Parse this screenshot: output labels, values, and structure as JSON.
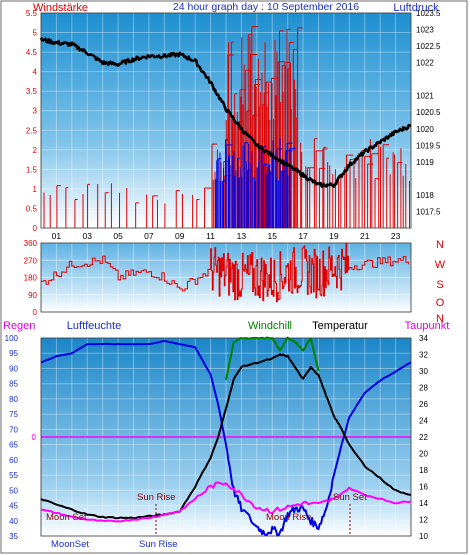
{
  "header": {
    "left_label": "Windstärke",
    "title": "24 hour graph day : 10 September 2016",
    "right_label": "Luftdruck"
  },
  "colors": {
    "red": "#e00000",
    "blue": "#0000e0",
    "darkblue": "#0b2a9e",
    "black": "#000000",
    "magenta": "#ff00ff",
    "green": "#008000",
    "maroon": "#8b0000",
    "label_blue": "#1a2fcc"
  },
  "chart_data": [
    {
      "type": "line",
      "name": "wind-pressure",
      "title": "24 hour graph day : 10 September 2016",
      "ylabel_left": "Windstärke",
      "ylabel_right": "Luftdruck",
      "ylim_left": [
        0,
        5.5
      ],
      "ylim_right": [
        1017,
        1023.5
      ],
      "left_ticks": [
        "0",
        "0.5",
        "1",
        "1.5",
        "2",
        "2.5",
        "3",
        "3.5",
        "4",
        "4.5",
        "5",
        "5.5"
      ],
      "right_ticks": [
        "1017.5",
        "1018",
        "1019",
        "1019.5",
        "1020",
        "1020.5",
        "1021",
        "1022",
        "1022.5",
        "1023",
        "1023.5"
      ],
      "x_ticks": [
        "01",
        "03",
        "05",
        "07",
        "09",
        "11",
        "13",
        "15",
        "17",
        "19",
        "21",
        "23"
      ],
      "xlim": [
        0,
        24
      ],
      "pressure": {
        "x": [
          0,
          1,
          2,
          3,
          4,
          5,
          6,
          7,
          8,
          9,
          10,
          11,
          12,
          13,
          14,
          15,
          16,
          17,
          18,
          19,
          20,
          21,
          22,
          23,
          24
        ],
        "y": [
          1022.7,
          1022.6,
          1022.55,
          1022.3,
          1022.0,
          1021.95,
          1022.1,
          1022.2,
          1022.2,
          1022.25,
          1022.05,
          1021.4,
          1020.6,
          1020.0,
          1019.5,
          1019.2,
          1018.9,
          1018.6,
          1018.3,
          1018.3,
          1018.9,
          1019.3,
          1019.6,
          1019.9,
          1020.1
        ]
      },
      "wind": [
        {
          "range": [
            0,
            11
          ],
          "level": 1,
          "bar_count": 22,
          "color": "red"
        },
        {
          "range": [
            11,
            12
          ],
          "level": 2,
          "bar_count": 8,
          "color": "red"
        },
        {
          "range": [
            12,
            16.7
          ],
          "level": 4.5,
          "bar_count": 60,
          "color": "red"
        },
        {
          "range": [
            11.3,
            16.2
          ],
          "level": 2,
          "bar_count": 55,
          "color": "blue"
        },
        {
          "range": [
            16.7,
            24
          ],
          "level": 2,
          "bar_count": 40,
          "color": "red"
        }
      ]
    },
    {
      "type": "line",
      "name": "wind-direction",
      "ylim": [
        0,
        360
      ],
      "left_ticks": [
        "0",
        "90",
        "180",
        "270",
        "360"
      ],
      "right_ticks": [
        "N",
        "W",
        "S",
        "O",
        "N"
      ],
      "x": [
        0,
        1,
        2,
        3,
        4,
        5,
        6,
        7,
        8,
        9,
        10,
        11,
        12,
        13,
        14,
        15,
        16,
        17,
        18,
        19,
        20,
        21,
        22,
        23,
        24
      ],
      "y": [
        150,
        200,
        250,
        260,
        270,
        180,
        200,
        210,
        180,
        120,
        170,
        220,
        200,
        180,
        190,
        170,
        210,
        220,
        200,
        240,
        240,
        250,
        260,
        270,
        270
      ]
    },
    {
      "type": "line",
      "name": "humidity-temperature",
      "left_label": "Regen",
      "left_label_2": "Luftfeuchte",
      "right_labels": [
        "Windchill",
        "Temperatur",
        "Taupunkt"
      ],
      "ylim_left": [
        35,
        100
      ],
      "ylim_right": [
        10,
        34
      ],
      "left_ticks": [
        "35",
        "40",
        "45",
        "50",
        "55",
        "60",
        "65",
        "70",
        "75",
        "80",
        "85",
        "90",
        "95",
        "100"
      ],
      "right_ticks": [
        "10",
        "12",
        "14",
        "16",
        "18",
        "20",
        "22",
        "24",
        "26",
        "28",
        "30",
        "32",
        "34"
      ],
      "zero_label": "0",
      "annotations": {
        "moon_set": "Moon Set",
        "moon_rise": "Moon Rise",
        "sun_rise": "Sun Rise",
        "sun_set": "Sun Set",
        "bottom_moon": "MoonSet",
        "bottom_sun": "Sun Rise"
      },
      "series": [
        {
          "name": "Luftfeuchte",
          "color": "blue",
          "axis": "left",
          "x": [
            0,
            1,
            2,
            3,
            4,
            5,
            6,
            7,
            8,
            9,
            10,
            11,
            11.5,
            12,
            12.5,
            13,
            14,
            14.5,
            15,
            15.5,
            16,
            16.5,
            17,
            17.5,
            18,
            18.5,
            19,
            19.5,
            20,
            21,
            22,
            23,
            24
          ],
          "y": [
            92,
            94,
            95,
            98,
            98,
            98,
            98,
            98,
            99,
            98,
            97,
            88,
            78,
            65,
            50,
            44,
            38,
            36,
            37,
            36,
            42,
            44,
            44,
            40,
            38,
            44,
            55,
            65,
            74,
            82,
            86,
            89,
            92
          ]
        },
        {
          "name": "Temperatur",
          "color": "black",
          "axis": "right",
          "x": [
            0,
            1,
            2,
            3,
            4,
            5,
            6,
            7,
            8,
            9,
            10,
            11,
            11.5,
            12,
            12.5,
            13,
            14,
            15,
            15.5,
            16,
            17,
            17.5,
            18,
            18.5,
            19,
            19.5,
            20,
            21,
            22,
            23,
            24
          ],
          "y": [
            14.5,
            13.8,
            13.2,
            12.6,
            12.3,
            12.2,
            12.2,
            12.4,
            12.6,
            13.0,
            16.0,
            19.5,
            22.0,
            25.5,
            29.0,
            30.5,
            31.0,
            31.5,
            32.0,
            31.8,
            29.0,
            30.5,
            29.5,
            27.0,
            24.5,
            23.0,
            21.0,
            18.5,
            17.0,
            15.5,
            15.0
          ]
        },
        {
          "name": "Taupunkt",
          "color": "magenta",
          "axis": "right",
          "x": [
            0,
            1,
            2,
            3,
            4,
            5,
            6,
            7,
            8,
            9,
            10,
            11,
            12,
            13,
            14,
            15,
            16,
            17,
            18,
            19,
            20,
            21,
            22,
            23,
            24
          ],
          "y": [
            13.2,
            12.8,
            12.3,
            12.0,
            11.8,
            11.8,
            12.0,
            12.2,
            12.6,
            13.0,
            14.5,
            16.0,
            16.5,
            15.0,
            13.5,
            13.0,
            13.5,
            14.0,
            13.8,
            14.5,
            15.8,
            15.0,
            14.5,
            14.0,
            14.2
          ]
        },
        {
          "name": "Windchill",
          "color": "green",
          "axis": "right",
          "x": [
            12,
            12.5,
            13,
            14,
            15,
            15.5,
            16,
            16.5,
            17,
            17.5,
            18
          ],
          "y": [
            29.0,
            33.5,
            34.0,
            34.0,
            34.0,
            32.5,
            34.0,
            33.5,
            32.5,
            34.0,
            30.0
          ]
        }
      ]
    }
  ]
}
